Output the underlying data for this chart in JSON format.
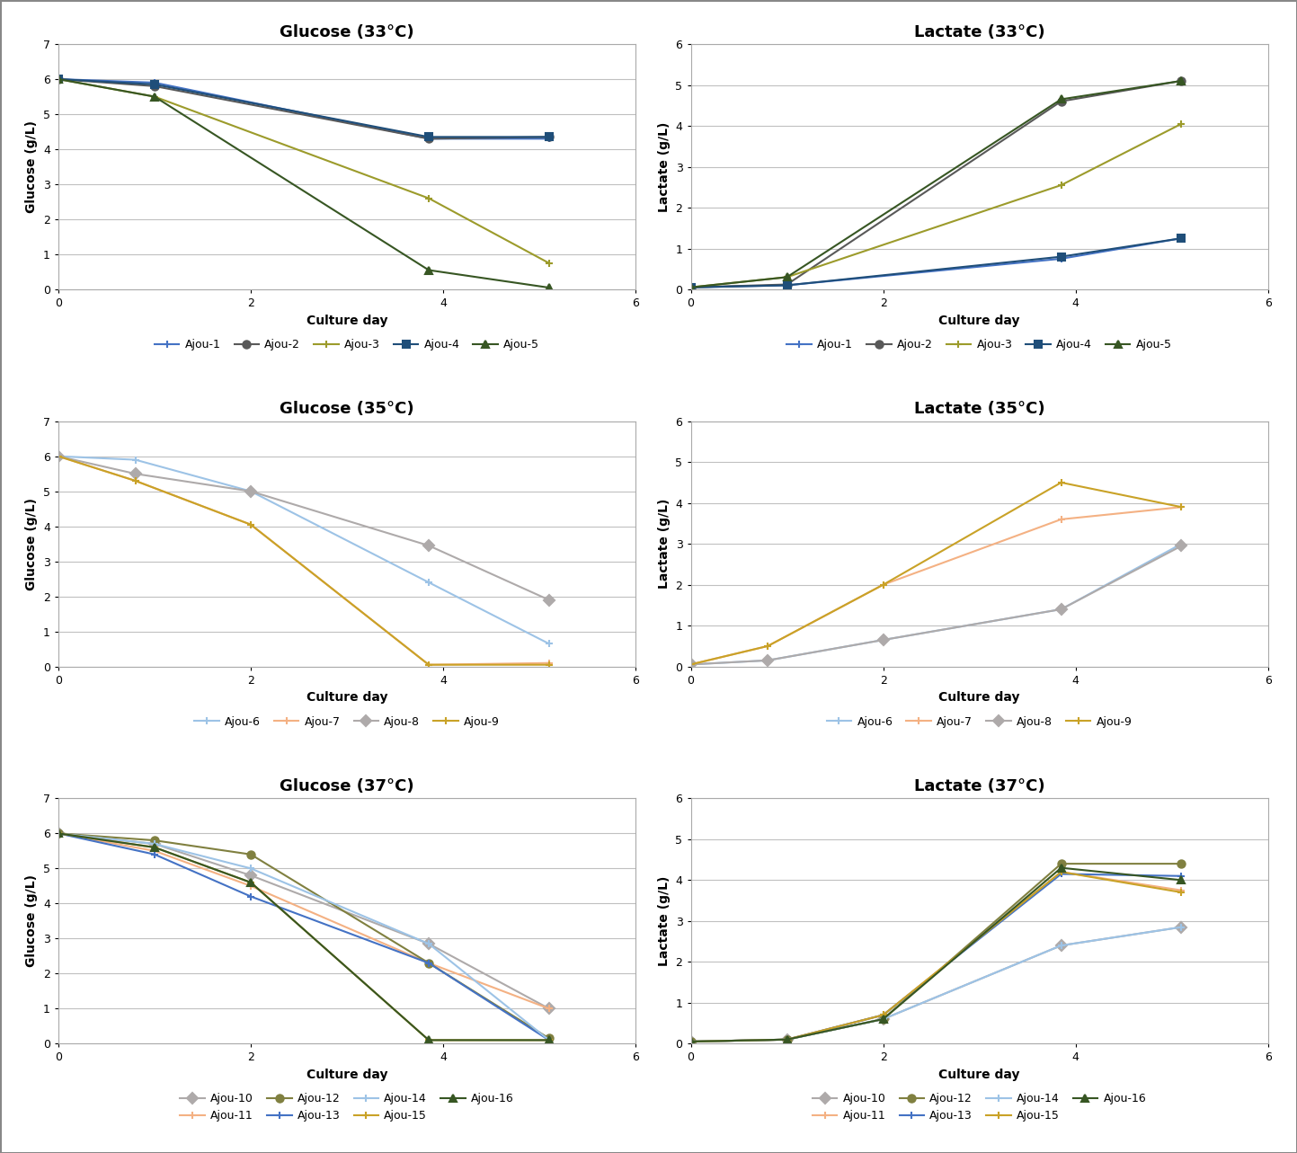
{
  "panels": [
    {
      "title": "Glucose (33°C)",
      "ylabel": "Glucose (g/L)",
      "xlabel": "Culture day",
      "ylim": [
        0,
        7
      ],
      "xlim": [
        0,
        6
      ],
      "yticks": [
        0,
        1,
        2,
        3,
        4,
        5,
        6,
        7
      ],
      "xticks": [
        0,
        2,
        4,
        6
      ],
      "series": [
        {
          "label": "Ajou-1",
          "x": [
            0,
            1,
            3.85,
            5.1
          ],
          "y": [
            6.0,
            5.9,
            4.3,
            4.3
          ],
          "color": "#4472C4",
          "marker": "+"
        },
        {
          "label": "Ajou-2",
          "x": [
            0,
            1,
            3.85,
            5.1
          ],
          "y": [
            6.0,
            5.8,
            4.3,
            4.35
          ],
          "color": "#595959",
          "marker": "o"
        },
        {
          "label": "Ajou-3",
          "x": [
            0,
            1,
            3.85,
            5.1
          ],
          "y": [
            6.0,
            5.5,
            2.6,
            0.75
          ],
          "color": "#9C9B2B",
          "marker": "+"
        },
        {
          "label": "Ajou-4",
          "x": [
            0,
            1,
            3.85,
            5.1
          ],
          "y": [
            6.0,
            5.85,
            4.35,
            4.35
          ],
          "color": "#1F4E79",
          "marker": "s"
        },
        {
          "label": "Ajou-5",
          "x": [
            0,
            1,
            3.85,
            5.1
          ],
          "y": [
            6.0,
            5.5,
            0.55,
            0.05
          ],
          "color": "#375623",
          "marker": "^"
        }
      ]
    },
    {
      "title": "Lactate (33°C)",
      "ylabel": "Lactate (g/L)",
      "xlabel": "Culture day",
      "ylim": [
        0,
        6
      ],
      "xlim": [
        0,
        6
      ],
      "yticks": [
        0,
        1,
        2,
        3,
        4,
        5,
        6
      ],
      "xticks": [
        0,
        2,
        4,
        6
      ],
      "series": [
        {
          "label": "Ajou-1",
          "x": [
            0,
            1,
            3.85,
            5.1
          ],
          "y": [
            0.05,
            0.1,
            0.75,
            1.25
          ],
          "color": "#4472C4",
          "marker": "+"
        },
        {
          "label": "Ajou-2",
          "x": [
            0,
            1,
            3.85,
            5.1
          ],
          "y": [
            0.05,
            0.12,
            4.6,
            5.1
          ],
          "color": "#595959",
          "marker": "o"
        },
        {
          "label": "Ajou-3",
          "x": [
            0,
            1,
            3.85,
            5.1
          ],
          "y": [
            0.05,
            0.3,
            2.55,
            4.05
          ],
          "color": "#9C9B2B",
          "marker": "+"
        },
        {
          "label": "Ajou-4",
          "x": [
            0,
            1,
            3.85,
            5.1
          ],
          "y": [
            0.05,
            0.1,
            0.8,
            1.25
          ],
          "color": "#1F4E79",
          "marker": "s"
        },
        {
          "label": "Ajou-5",
          "x": [
            0,
            1,
            3.85,
            5.1
          ],
          "y": [
            0.05,
            0.3,
            4.65,
            5.1
          ],
          "color": "#375623",
          "marker": "^"
        }
      ]
    },
    {
      "title": "Glucose (35°C)",
      "ylabel": "Glucose (g/L)",
      "xlabel": "Culture day",
      "ylim": [
        0,
        7
      ],
      "xlim": [
        0,
        6
      ],
      "yticks": [
        0,
        1,
        2,
        3,
        4,
        5,
        6,
        7
      ],
      "xticks": [
        0,
        2,
        4,
        6
      ],
      "series": [
        {
          "label": "Ajou-6",
          "x": [
            0,
            0.8,
            2.0,
            3.85,
            5.1
          ],
          "y": [
            6.0,
            5.9,
            5.0,
            2.4,
            0.65
          ],
          "color": "#9DC3E6",
          "marker": "+"
        },
        {
          "label": "Ajou-7",
          "x": [
            0,
            0.8,
            2.0,
            3.85,
            5.1
          ],
          "y": [
            6.0,
            5.3,
            4.05,
            0.05,
            0.1
          ],
          "color": "#F4B183",
          "marker": "+"
        },
        {
          "label": "Ajou-8",
          "x": [
            0,
            0.8,
            2.0,
            3.85,
            5.1
          ],
          "y": [
            6.0,
            5.5,
            5.0,
            3.45,
            1.9
          ],
          "color": "#AEAAAA",
          "marker": "D"
        },
        {
          "label": "Ajou-9",
          "x": [
            0,
            0.8,
            2.0,
            3.85,
            5.1
          ],
          "y": [
            6.0,
            5.3,
            4.05,
            0.05,
            0.05
          ],
          "color": "#C9A227",
          "marker": "+"
        }
      ]
    },
    {
      "title": "Lactate (35°C)",
      "ylabel": "Lactate (g/L)",
      "xlabel": "Culture day",
      "ylim": [
        0,
        6
      ],
      "xlim": [
        0,
        6
      ],
      "yticks": [
        0,
        1,
        2,
        3,
        4,
        5,
        6
      ],
      "xticks": [
        0,
        2,
        4,
        6
      ],
      "series": [
        {
          "label": "Ajou-6",
          "x": [
            0,
            0.8,
            2.0,
            3.85,
            5.1
          ],
          "y": [
            0.05,
            0.15,
            0.65,
            1.4,
            3.0
          ],
          "color": "#9DC3E6",
          "marker": "+"
        },
        {
          "label": "Ajou-7",
          "x": [
            0,
            0.8,
            2.0,
            3.85,
            5.1
          ],
          "y": [
            0.05,
            0.5,
            2.0,
            3.6,
            3.9
          ],
          "color": "#F4B183",
          "marker": "+"
        },
        {
          "label": "Ajou-8",
          "x": [
            0,
            0.8,
            2.0,
            3.85,
            5.1
          ],
          "y": [
            0.05,
            0.15,
            0.65,
            1.4,
            2.95
          ],
          "color": "#AEAAAA",
          "marker": "D"
        },
        {
          "label": "Ajou-9",
          "x": [
            0,
            0.8,
            2.0,
            3.85,
            5.1
          ],
          "y": [
            0.05,
            0.5,
            2.0,
            4.5,
            3.9
          ],
          "color": "#C9A227",
          "marker": "+"
        }
      ]
    },
    {
      "title": "Glucose (37°C)",
      "ylabel": "Glucose (g/L)",
      "xlabel": "Culture day",
      "ylim": [
        0,
        7
      ],
      "xlim": [
        0,
        6
      ],
      "yticks": [
        0,
        1,
        2,
        3,
        4,
        5,
        6,
        7
      ],
      "xticks": [
        0,
        2,
        4,
        6
      ],
      "series": [
        {
          "label": "Ajou-10",
          "x": [
            0,
            1,
            2,
            3.85,
            5.1
          ],
          "y": [
            6.0,
            5.7,
            4.8,
            2.85,
            1.0
          ],
          "color": "#AEAAAA",
          "marker": "D"
        },
        {
          "label": "Ajou-11",
          "x": [
            0,
            1,
            2,
            3.85,
            5.1
          ],
          "y": [
            6.0,
            5.5,
            4.5,
            2.3,
            1.0
          ],
          "color": "#F4B183",
          "marker": "+"
        },
        {
          "label": "Ajou-12",
          "x": [
            0,
            1,
            2,
            3.85,
            5.1
          ],
          "y": [
            6.0,
            5.8,
            5.4,
            2.3,
            0.15
          ],
          "color": "#808040",
          "marker": "o"
        },
        {
          "label": "Ajou-13",
          "x": [
            0,
            1,
            2,
            3.85,
            5.1
          ],
          "y": [
            6.0,
            5.4,
            4.2,
            2.3,
            0.1
          ],
          "color": "#4472C4",
          "marker": "+"
        },
        {
          "label": "Ajou-14",
          "x": [
            0,
            1,
            2,
            3.85,
            5.1
          ],
          "y": [
            6.0,
            5.7,
            5.0,
            2.85,
            0.1
          ],
          "color": "#9DC3E6",
          "marker": "+"
        },
        {
          "label": "Ajou-15",
          "x": [
            0,
            1,
            2,
            3.85,
            5.1
          ],
          "y": [
            6.0,
            5.6,
            4.6,
            0.1,
            0.1
          ],
          "color": "#C9A227",
          "marker": "+"
        },
        {
          "label": "Ajou-16",
          "x": [
            0,
            1,
            2,
            3.85,
            5.1
          ],
          "y": [
            6.0,
            5.6,
            4.6,
            0.1,
            0.1
          ],
          "color": "#375623",
          "marker": "^"
        }
      ]
    },
    {
      "title": "Lactate (37°C)",
      "ylabel": "Lactate (g/L)",
      "xlabel": "Culture day",
      "ylim": [
        0,
        6
      ],
      "xlim": [
        0,
        6
      ],
      "yticks": [
        0,
        1,
        2,
        3,
        4,
        5,
        6
      ],
      "xticks": [
        0,
        2,
        4,
        6
      ],
      "series": [
        {
          "label": "Ajou-10",
          "x": [
            0,
            1,
            2,
            3.85,
            5.1
          ],
          "y": [
            0.05,
            0.1,
            0.6,
            2.4,
            2.85
          ],
          "color": "#AEAAAA",
          "marker": "D"
        },
        {
          "label": "Ajou-11",
          "x": [
            0,
            1,
            2,
            3.85,
            5.1
          ],
          "y": [
            0.05,
            0.1,
            0.7,
            4.2,
            3.75
          ],
          "color": "#F4B183",
          "marker": "+"
        },
        {
          "label": "Ajou-12",
          "x": [
            0,
            1,
            2,
            3.85,
            5.1
          ],
          "y": [
            0.05,
            0.1,
            0.6,
            4.4,
            4.4
          ],
          "color": "#808040",
          "marker": "o"
        },
        {
          "label": "Ajou-13",
          "x": [
            0,
            1,
            2,
            3.85,
            5.1
          ],
          "y": [
            0.05,
            0.1,
            0.7,
            4.15,
            4.1
          ],
          "color": "#4472C4",
          "marker": "+"
        },
        {
          "label": "Ajou-14",
          "x": [
            0,
            1,
            2,
            3.85,
            5.1
          ],
          "y": [
            0.05,
            0.1,
            0.6,
            2.4,
            2.85
          ],
          "color": "#9DC3E6",
          "marker": "+"
        },
        {
          "label": "Ajou-15",
          "x": [
            0,
            1,
            2,
            3.85,
            5.1
          ],
          "y": [
            0.05,
            0.1,
            0.7,
            4.2,
            3.7
          ],
          "color": "#C9A227",
          "marker": "+"
        },
        {
          "label": "Ajou-16",
          "x": [
            0,
            1,
            2,
            3.85,
            5.1
          ],
          "y": [
            0.05,
            0.1,
            0.6,
            4.3,
            4.0
          ],
          "color": "#375623",
          "marker": "^"
        }
      ]
    }
  ],
  "fig_bg": "#FFFFFF",
  "panel_bg": "#FFFFFF",
  "border_color": "#AAAAAA",
  "grid_color": "#C0C0C0",
  "title_fontsize": 13,
  "axis_label_fontsize": 10,
  "tick_fontsize": 9,
  "legend_fontsize": 9,
  "line_width": 1.5,
  "marker_size": 6
}
